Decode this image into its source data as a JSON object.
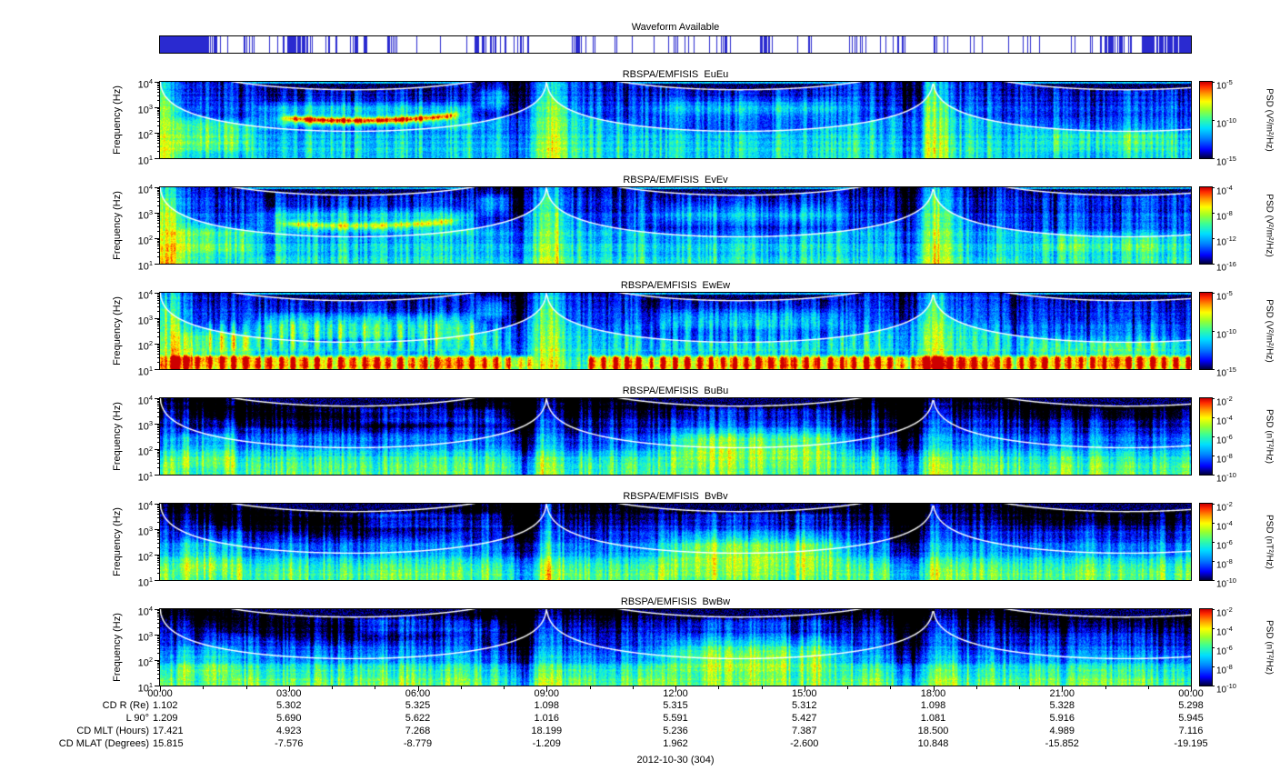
{
  "waveform": {
    "title": "Waveform Available"
  },
  "yaxis": {
    "label": "Frequency (Hz)",
    "base": "10",
    "tick_exponents": [
      4,
      3,
      2,
      1
    ]
  },
  "xaxis": {
    "ticks": [
      "00:00",
      "03:00",
      "06:00",
      "09:00",
      "12:00",
      "15:00",
      "18:00",
      "21:00",
      "00:00"
    ],
    "date_label": "2012-10-30 (304)"
  },
  "colors": {
    "waveform_tick": "#2a2ad0",
    "overlay_curve": "#ffffff",
    "axis": "#000000"
  },
  "panels": [
    {
      "channel": "EuEu",
      "title": "RBSPA/EMFISIS  EuEu",
      "measurement": "electric",
      "cb_label": "PSD (V²/m²/Hz)",
      "cb_base": "10",
      "cb_tick_exponents": [
        -5,
        -10,
        -15
      ]
    },
    {
      "channel": "EvEv",
      "title": "RBSPA/EMFISIS  EvEv",
      "measurement": "electric",
      "cb_label": "PSD (V²/m²/Hz)",
      "cb_base": "10",
      "cb_tick_exponents": [
        -4,
        -8,
        -12,
        -16
      ]
    },
    {
      "channel": "EwEw",
      "title": "RBSPA/EMFISIS  EwEw",
      "measurement": "electric",
      "cb_label": "PSD (V²/m²/Hz)",
      "cb_base": "10",
      "cb_tick_exponents": [
        -5,
        -10,
        -15
      ]
    },
    {
      "channel": "BuBu",
      "title": "RBSPA/EMFISIS  BuBu",
      "measurement": "magnetic",
      "cb_label": "PSD (nT²/Hz)",
      "cb_base": "10",
      "cb_tick_exponents": [
        -2,
        -4,
        -6,
        -8,
        -10
      ]
    },
    {
      "channel": "BvBv",
      "title": "RBSPA/EMFISIS  BvBv",
      "measurement": "magnetic",
      "cb_label": "PSD (nT²/Hz)",
      "cb_base": "10",
      "cb_tick_exponents": [
        -2,
        -4,
        -6,
        -8,
        -10
      ]
    },
    {
      "channel": "BwBw",
      "title": "RBSPA/EMFISIS  BwBw",
      "measurement": "magnetic",
      "cb_label": "PSD (nT²/Hz)",
      "cb_base": "10",
      "cb_tick_exponents": [
        -2,
        -4,
        -6,
        -8,
        -10
      ]
    }
  ],
  "ephemeris": {
    "rows": [
      {
        "label": "CD R (Re)",
        "values": [
          "1.102",
          "5.302",
          "5.325",
          "1.098",
          "5.315",
          "5.312",
          "1.098",
          "5.328",
          "5.298"
        ]
      },
      {
        "label": "L 90°",
        "values": [
          "1.209",
          "5.690",
          "5.622",
          "1.016",
          "5.591",
          "5.427",
          "1.081",
          "5.916",
          "5.945"
        ]
      },
      {
        "label": "CD MLT (Hours)",
        "values": [
          "17.421",
          "4.923",
          "7.268",
          "18.199",
          "5.236",
          "7.387",
          "18.500",
          "4.989",
          "7.116"
        ]
      },
      {
        "label": "CD MLAT (Degrees)",
        "values": [
          "15.815",
          "-7.576",
          "-8.779",
          "-1.209",
          "1.962",
          "-2.600",
          "10.848",
          "-15.852",
          "-19.195"
        ]
      }
    ]
  },
  "chart_data": [
    {
      "type": "availability",
      "title": "Waveform Available",
      "x_ticks": [
        "00:00",
        "03:00",
        "06:00",
        "09:00",
        "12:00",
        "15:00",
        "18:00",
        "21:00",
        "00:00"
      ],
      "description": "Blue vertical tick marks over 24 h of 2012-10-30 showing when burst waveform data exists; dense clusters near 00:00 and 23:30-24:00, scattered marks through the day."
    },
    {
      "type": "heatmap",
      "title": "RBSPA/EMFISIS  EuEu",
      "ylabel": "Frequency (Hz)",
      "y_scale": "log",
      "ylim": [
        10,
        10000
      ],
      "y_ticks": [
        10,
        100,
        1000,
        10000
      ],
      "x_ticks": [
        "00:00",
        "03:00",
        "06:00",
        "09:00",
        "12:00",
        "15:00",
        "18:00",
        "21:00",
        "00:00"
      ],
      "colorbar_label": "PSD (V²/m²/Hz)",
      "colorbar_scale": "log",
      "colorbar_ticks": [
        1e-05,
        1e-10,
        1e-15
      ],
      "colorbar_range": [
        1e-15,
        1e-05
      ],
      "overlays": [
        "white curve: electron cyclotron frequency (peaks at perigees 00:00, 09:00, 18:00)",
        "white curve: lower-hybrid frequency"
      ],
      "description": "Electric field spectrogram: black above fce, blue/cyan background, green hiss band 100-2000 Hz from ~02:00-07:30 with narrow orange line near 150 Hz, broadband bright columns at perigees, green patches 11:00-16:30."
    },
    {
      "type": "heatmap",
      "title": "RBSPA/EMFISIS  EvEv",
      "ylabel": "Frequency (Hz)",
      "y_scale": "log",
      "ylim": [
        10,
        10000
      ],
      "y_ticks": [
        10,
        100,
        1000,
        10000
      ],
      "x_ticks": [
        "00:00",
        "03:00",
        "06:00",
        "09:00",
        "12:00",
        "15:00",
        "18:00",
        "21:00",
        "00:00"
      ],
      "colorbar_label": "PSD (V²/m²/Hz)",
      "colorbar_scale": "log",
      "colorbar_ticks": [
        0.0001,
        1e-08,
        1e-12,
        1e-16
      ],
      "colorbar_range": [
        1e-16,
        0.0001
      ],
      "overlays": [
        "white curve: electron cyclotron frequency",
        "white curve: lower-hybrid frequency"
      ],
      "description": "Similar to EuEu with hiss band 02:00-07:30, perigee columns at 09:00 and 18:00, dayside green patches 11:00-16:30."
    },
    {
      "type": "heatmap",
      "title": "RBSPA/EMFISIS  EwEw",
      "ylabel": "Frequency (Hz)",
      "y_scale": "log",
      "ylim": [
        10,
        10000
      ],
      "y_ticks": [
        10,
        100,
        1000,
        10000
      ],
      "x_ticks": [
        "00:00",
        "03:00",
        "06:00",
        "09:00",
        "12:00",
        "15:00",
        "18:00",
        "21:00",
        "00:00"
      ],
      "colorbar_label": "PSD (V²/m²/Hz)",
      "colorbar_scale": "log",
      "colorbar_ticks": [
        1e-05,
        1e-10,
        1e-15
      ],
      "colorbar_range": [
        1e-15,
        1e-05
      ],
      "overlays": [
        "white curve: electron cyclotron frequency",
        "white curve: lower-hybrid frequency"
      ],
      "description": "Spin-axis channel: intense red/orange comb of vertical interference stripes below ~40 Hz across nearly the whole day (gap ~08:40-10:00), cyan stripe comb extending to ~1 kHz, black above fce."
    },
    {
      "type": "heatmap",
      "title": "RBSPA/EMFISIS  BuBu",
      "ylabel": "Frequency (Hz)",
      "y_scale": "log",
      "ylim": [
        10,
        10000
      ],
      "y_ticks": [
        10,
        100,
        1000,
        10000
      ],
      "x_ticks": [
        "00:00",
        "03:00",
        "06:00",
        "09:00",
        "12:00",
        "15:00",
        "18:00",
        "21:00",
        "00:00"
      ],
      "colorbar_label": "PSD (nT²/Hz)",
      "colorbar_scale": "log",
      "colorbar_ticks": [
        0.01,
        0.0001,
        1e-06,
        1e-08,
        1e-10
      ],
      "colorbar_range": [
        1e-10,
        0.01
      ],
      "overlays": [
        "white curve: electron cyclotron frequency",
        "white curve: lower-hybrid frequency"
      ],
      "description": "Magnetic spectrogram: green below a few hundred Hz all day, yellow-orange enhancement ~60-600 Hz from ~11:30-16:30, black above fce, bright narrow columns at perigees 09:00 and 18:00."
    },
    {
      "type": "heatmap",
      "title": "RBSPA/EMFISIS  BvBv",
      "ylabel": "Frequency (Hz)",
      "y_scale": "log",
      "ylim": [
        10,
        10000
      ],
      "y_ticks": [
        10,
        100,
        1000,
        10000
      ],
      "x_ticks": [
        "00:00",
        "03:00",
        "06:00",
        "09:00",
        "12:00",
        "15:00",
        "18:00",
        "21:00",
        "00:00"
      ],
      "colorbar_label": "PSD (nT²/Hz)",
      "colorbar_scale": "log",
      "colorbar_ticks": [
        0.01,
        0.0001,
        1e-06,
        1e-08,
        1e-10
      ],
      "colorbar_range": [
        1e-10,
        0.01
      ],
      "overlays": [
        "white curve: electron cyclotron frequency",
        "white curve: lower-hybrid frequency"
      ],
      "description": "Same morphology as BuBu."
    },
    {
      "type": "heatmap",
      "title": "RBSPA/EMFISIS  BwBw",
      "ylabel": "Frequency (Hz)",
      "y_scale": "log",
      "ylim": [
        10,
        10000
      ],
      "y_ticks": [
        10,
        100,
        1000,
        10000
      ],
      "x_ticks": [
        "00:00",
        "03:00",
        "06:00",
        "09:00",
        "12:00",
        "15:00",
        "18:00",
        "21:00",
        "00:00"
      ],
      "colorbar_label": "PSD (nT²/Hz)",
      "colorbar_scale": "log",
      "colorbar_ticks": [
        0.01,
        0.0001,
        1e-06,
        1e-08,
        1e-10
      ],
      "colorbar_range": [
        1e-10,
        0.01
      ],
      "overlays": [
        "white curve: electron cyclotron frequency",
        "white curve: lower-hybrid frequency"
      ],
      "description": "Same morphology as BuBu/BvBv."
    },
    {
      "type": "table",
      "title": "Orbit ephemeris vs UT",
      "date_label": "2012-10-30 (304)",
      "columns": [
        "00:00",
        "03:00",
        "06:00",
        "09:00",
        "12:00",
        "15:00",
        "18:00",
        "21:00",
        "00:00"
      ],
      "rows": [
        {
          "label": "CD R (Re)",
          "values": [
            1.102,
            5.302,
            5.325,
            1.098,
            5.315,
            5.312,
            1.098,
            5.328,
            5.298
          ]
        },
        {
          "label": "L 90°",
          "values": [
            1.209,
            5.69,
            5.622,
            1.016,
            5.591,
            5.427,
            1.081,
            5.916,
            5.945
          ]
        },
        {
          "label": "CD MLT (Hours)",
          "values": [
            17.421,
            4.923,
            7.268,
            18.199,
            5.236,
            7.387,
            18.5,
            4.989,
            7.116
          ]
        },
        {
          "label": "CD MLAT (Degrees)",
          "values": [
            15.815,
            -7.576,
            -8.779,
            -1.209,
            1.962,
            -2.6,
            10.848,
            -15.852,
            -19.195
          ]
        }
      ]
    }
  ]
}
